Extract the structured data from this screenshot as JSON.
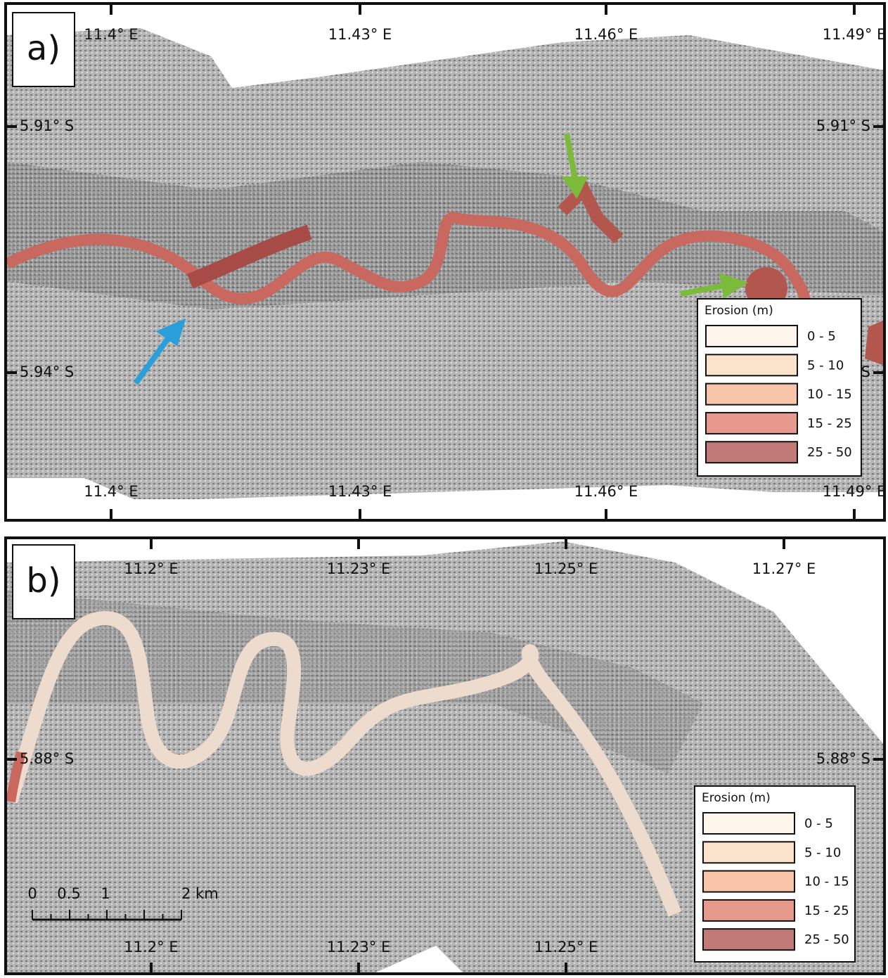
{
  "panels": [
    {
      "label": "a)",
      "top_labels": [
        "11.4° E",
        "11.43° E",
        "11.46° E",
        "11.49° E"
      ],
      "bottom_labels": [
        "11.4° E",
        "11.43° E",
        "11.46° E",
        "11.49° E"
      ],
      "left_labels": [
        "5.91° S",
        "5.94° S"
      ],
      "right_labels": [
        "5.91° S",
        "5.94° S"
      ],
      "legend": {
        "title": "Erosion (m)",
        "classes": [
          {
            "label": "0 - 5",
            "color": "#fdf5ec"
          },
          {
            "label": "5 - 10",
            "color": "#fbe3cb"
          },
          {
            "label": "10 - 15",
            "color": "#f8c5ab"
          },
          {
            "label": "15 - 25",
            "color": "#e7998d"
          },
          {
            "label": "25 - 50",
            "color": "#c27a78"
          }
        ]
      }
    },
    {
      "label": "b)",
      "top_labels": [
        "11.2° E",
        "11.23° E",
        "11.25° E",
        "11.27° E"
      ],
      "bottom_labels": [
        "11.2° E",
        "11.23° E",
        "11.25° E"
      ],
      "left_labels": [
        "5.88° S"
      ],
      "right_labels": [
        "5.88° S"
      ],
      "legend": {
        "title": "Erosion (m)",
        "classes": [
          {
            "label": "0 - 5",
            "color": "#fdf5ec"
          },
          {
            "label": "5 - 10",
            "color": "#fbe3cb"
          },
          {
            "label": "10 - 15",
            "color": "#f8c5ab"
          },
          {
            "label": "15 - 25",
            "color": "#e7998d"
          },
          {
            "label": "25 - 50",
            "color": "#c27a78"
          }
        ]
      },
      "scale_bar": [
        "0",
        "0.5",
        "1",
        "2 km"
      ]
    }
  ]
}
